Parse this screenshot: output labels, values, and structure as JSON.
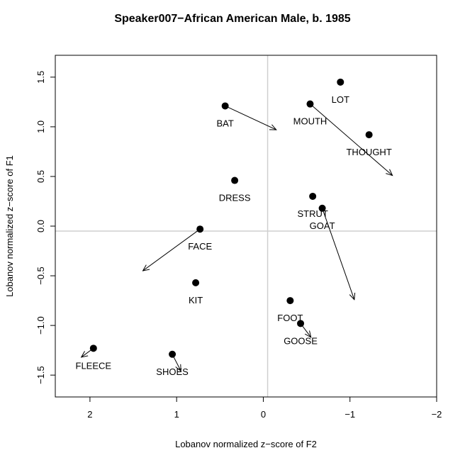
{
  "chart_data": {
    "type": "scatter",
    "title": "Speaker007−African American Male, b. 1985",
    "xlabel": "Lobanov normalized z−score of F2",
    "ylabel": "Lobanov normalized z−score of F1",
    "xlim": [
      2.4,
      -2.0
    ],
    "ylim": [
      1.72,
      -1.72
    ],
    "x_reversed": true,
    "y_reversed": true,
    "x_ticks": [
      2,
      1,
      0,
      -1,
      -2
    ],
    "x_tick_labels": [
      "2",
      "1",
      "0",
      "−1",
      "−2"
    ],
    "y_ticks": [
      -1.5,
      -1.0,
      -0.5,
      0.0,
      0.5,
      1.0,
      1.5
    ],
    "y_tick_labels": [
      "−1.5",
      "−1.0",
      "−0.5",
      "0.0",
      "0.5",
      "1.0",
      "1.5"
    ],
    "reference_lines": {
      "x": -0.05,
      "y": -0.05
    },
    "points": [
      {
        "label": "FLEECE",
        "x": 1.96,
        "y": -1.23,
        "arrow_to": [
          2.1,
          -1.32
        ]
      },
      {
        "label": "SHOES",
        "x": 1.05,
        "y": -1.29,
        "arrow_to": [
          0.95,
          -1.46
        ]
      },
      {
        "label": "GOOSE",
        "x": -0.43,
        "y": -0.98,
        "arrow_to": [
          -0.55,
          -1.12
        ]
      },
      {
        "label": "FOOT",
        "x": -0.31,
        "y": -0.75,
        "arrow_to": null
      },
      {
        "label": "KIT",
        "x": 0.78,
        "y": -0.57,
        "arrow_to": null
      },
      {
        "label": "FACE",
        "x": 0.73,
        "y": -0.03,
        "arrow_to": [
          1.39,
          -0.45
        ]
      },
      {
        "label": "GOAT",
        "x": -0.68,
        "y": 0.18,
        "arrow_to": [
          -1.05,
          -0.74
        ]
      },
      {
        "label": "STRUT",
        "x": -0.57,
        "y": 0.3,
        "arrow_to": null
      },
      {
        "label": "DRESS",
        "x": 0.33,
        "y": 0.46,
        "arrow_to": null
      },
      {
        "label": "THOUGHT",
        "x": -1.22,
        "y": 0.92,
        "arrow_to": null
      },
      {
        "label": "BAT",
        "x": 0.44,
        "y": 1.21,
        "arrow_to": [
          -0.15,
          0.97
        ]
      },
      {
        "label": "MOUTH",
        "x": -0.54,
        "y": 1.23,
        "arrow_to": [
          -1.49,
          0.51
        ]
      },
      {
        "label": "LOT",
        "x": -0.89,
        "y": 1.45,
        "arrow_to": null
      }
    ],
    "grid": false,
    "legend": "none"
  }
}
